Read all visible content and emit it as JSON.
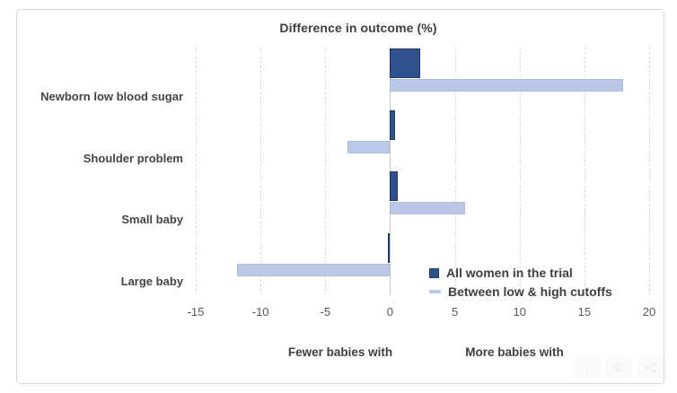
{
  "chart_data": {
    "type": "bar",
    "orientation": "horizontal",
    "title": "Difference in outcome (%)",
    "categories": [
      "Newborn low blood sugar",
      "Shoulder problem",
      "Small baby",
      "Large baby"
    ],
    "series": [
      {
        "name": "All women in the trial",
        "marker": "square",
        "color": "#2F528F",
        "border_color": "#1F3864",
        "values": [
          2.3,
          0.4,
          0.6,
          -0.2
        ]
      },
      {
        "name": "Between low & high cutoffs",
        "marker": "dash",
        "color": "#BAC7E6",
        "border_color": "#AEBEDF",
        "values": [
          18,
          -3.3,
          5.8,
          -11.8
        ]
      }
    ],
    "xlim": [
      -15,
      20
    ],
    "x_ticks": [
      -15,
      -10,
      -5,
      0,
      5,
      10,
      15,
      20
    ],
    "grid": "vertical-dashed",
    "zero_line": "solid",
    "legend_position": "inside-bottom-right",
    "axis_annotations": [
      {
        "text": "Fewer babies with",
        "side": "negative"
      },
      {
        "text": "More babies with",
        "side": "positive"
      }
    ]
  },
  "overlay_buttons": [
    {
      "icon": "download-icon"
    },
    {
      "icon": "cc-license-icon"
    },
    {
      "icon": "share-icon"
    }
  ],
  "colors": {
    "bar_dark": "#2F528F",
    "bar_dark_border": "#1F3864",
    "bar_light": "#BAC7E6",
    "bar_light_border": "#AEBEDF",
    "grid": "#DCDCDC",
    "zero_line": "#C6C6C6",
    "text": "#3F3F3F",
    "tick_text": "#595959",
    "card_border": "#D9D9D9"
  }
}
